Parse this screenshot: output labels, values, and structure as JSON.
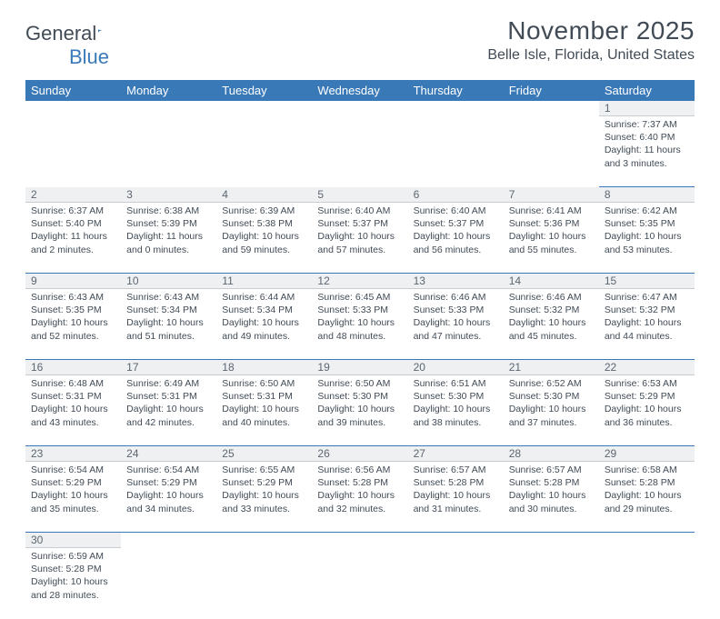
{
  "logo": {
    "text1": "General",
    "text2": "Blue"
  },
  "title": "November 2025",
  "location": "Belle Isle, Florida, United States",
  "colors": {
    "header_bg": "#3a79b7",
    "header_fg": "#ffffff",
    "daynum_bg": "#eef0f2",
    "daynum_fg": "#5d6670",
    "border": "#3a79b7",
    "text": "#414b56"
  },
  "weekdays": [
    "Sunday",
    "Monday",
    "Tuesday",
    "Wednesday",
    "Thursday",
    "Friday",
    "Saturday"
  ],
  "weeks": [
    {
      "days": [
        null,
        null,
        null,
        null,
        null,
        null,
        {
          "n": "1",
          "sunrise": "Sunrise: 7:37 AM",
          "sunset": "Sunset: 6:40 PM",
          "daylight": "Daylight: 11 hours and 3 minutes."
        }
      ]
    },
    {
      "days": [
        {
          "n": "2",
          "sunrise": "Sunrise: 6:37 AM",
          "sunset": "Sunset: 5:40 PM",
          "daylight": "Daylight: 11 hours and 2 minutes."
        },
        {
          "n": "3",
          "sunrise": "Sunrise: 6:38 AM",
          "sunset": "Sunset: 5:39 PM",
          "daylight": "Daylight: 11 hours and 0 minutes."
        },
        {
          "n": "4",
          "sunrise": "Sunrise: 6:39 AM",
          "sunset": "Sunset: 5:38 PM",
          "daylight": "Daylight: 10 hours and 59 minutes."
        },
        {
          "n": "5",
          "sunrise": "Sunrise: 6:40 AM",
          "sunset": "Sunset: 5:37 PM",
          "daylight": "Daylight: 10 hours and 57 minutes."
        },
        {
          "n": "6",
          "sunrise": "Sunrise: 6:40 AM",
          "sunset": "Sunset: 5:37 PM",
          "daylight": "Daylight: 10 hours and 56 minutes."
        },
        {
          "n": "7",
          "sunrise": "Sunrise: 6:41 AM",
          "sunset": "Sunset: 5:36 PM",
          "daylight": "Daylight: 10 hours and 55 minutes."
        },
        {
          "n": "8",
          "sunrise": "Sunrise: 6:42 AM",
          "sunset": "Sunset: 5:35 PM",
          "daylight": "Daylight: 10 hours and 53 minutes."
        }
      ]
    },
    {
      "days": [
        {
          "n": "9",
          "sunrise": "Sunrise: 6:43 AM",
          "sunset": "Sunset: 5:35 PM",
          "daylight": "Daylight: 10 hours and 52 minutes."
        },
        {
          "n": "10",
          "sunrise": "Sunrise: 6:43 AM",
          "sunset": "Sunset: 5:34 PM",
          "daylight": "Daylight: 10 hours and 51 minutes."
        },
        {
          "n": "11",
          "sunrise": "Sunrise: 6:44 AM",
          "sunset": "Sunset: 5:34 PM",
          "daylight": "Daylight: 10 hours and 49 minutes."
        },
        {
          "n": "12",
          "sunrise": "Sunrise: 6:45 AM",
          "sunset": "Sunset: 5:33 PM",
          "daylight": "Daylight: 10 hours and 48 minutes."
        },
        {
          "n": "13",
          "sunrise": "Sunrise: 6:46 AM",
          "sunset": "Sunset: 5:33 PM",
          "daylight": "Daylight: 10 hours and 47 minutes."
        },
        {
          "n": "14",
          "sunrise": "Sunrise: 6:46 AM",
          "sunset": "Sunset: 5:32 PM",
          "daylight": "Daylight: 10 hours and 45 minutes."
        },
        {
          "n": "15",
          "sunrise": "Sunrise: 6:47 AM",
          "sunset": "Sunset: 5:32 PM",
          "daylight": "Daylight: 10 hours and 44 minutes."
        }
      ]
    },
    {
      "days": [
        {
          "n": "16",
          "sunrise": "Sunrise: 6:48 AM",
          "sunset": "Sunset: 5:31 PM",
          "daylight": "Daylight: 10 hours and 43 minutes."
        },
        {
          "n": "17",
          "sunrise": "Sunrise: 6:49 AM",
          "sunset": "Sunset: 5:31 PM",
          "daylight": "Daylight: 10 hours and 42 minutes."
        },
        {
          "n": "18",
          "sunrise": "Sunrise: 6:50 AM",
          "sunset": "Sunset: 5:31 PM",
          "daylight": "Daylight: 10 hours and 40 minutes."
        },
        {
          "n": "19",
          "sunrise": "Sunrise: 6:50 AM",
          "sunset": "Sunset: 5:30 PM",
          "daylight": "Daylight: 10 hours and 39 minutes."
        },
        {
          "n": "20",
          "sunrise": "Sunrise: 6:51 AM",
          "sunset": "Sunset: 5:30 PM",
          "daylight": "Daylight: 10 hours and 38 minutes."
        },
        {
          "n": "21",
          "sunrise": "Sunrise: 6:52 AM",
          "sunset": "Sunset: 5:30 PM",
          "daylight": "Daylight: 10 hours and 37 minutes."
        },
        {
          "n": "22",
          "sunrise": "Sunrise: 6:53 AM",
          "sunset": "Sunset: 5:29 PM",
          "daylight": "Daylight: 10 hours and 36 minutes."
        }
      ]
    },
    {
      "days": [
        {
          "n": "23",
          "sunrise": "Sunrise: 6:54 AM",
          "sunset": "Sunset: 5:29 PM",
          "daylight": "Daylight: 10 hours and 35 minutes."
        },
        {
          "n": "24",
          "sunrise": "Sunrise: 6:54 AM",
          "sunset": "Sunset: 5:29 PM",
          "daylight": "Daylight: 10 hours and 34 minutes."
        },
        {
          "n": "25",
          "sunrise": "Sunrise: 6:55 AM",
          "sunset": "Sunset: 5:29 PM",
          "daylight": "Daylight: 10 hours and 33 minutes."
        },
        {
          "n": "26",
          "sunrise": "Sunrise: 6:56 AM",
          "sunset": "Sunset: 5:28 PM",
          "daylight": "Daylight: 10 hours and 32 minutes."
        },
        {
          "n": "27",
          "sunrise": "Sunrise: 6:57 AM",
          "sunset": "Sunset: 5:28 PM",
          "daylight": "Daylight: 10 hours and 31 minutes."
        },
        {
          "n": "28",
          "sunrise": "Sunrise: 6:57 AM",
          "sunset": "Sunset: 5:28 PM",
          "daylight": "Daylight: 10 hours and 30 minutes."
        },
        {
          "n": "29",
          "sunrise": "Sunrise: 6:58 AM",
          "sunset": "Sunset: 5:28 PM",
          "daylight": "Daylight: 10 hours and 29 minutes."
        }
      ]
    },
    {
      "days": [
        {
          "n": "30",
          "sunrise": "Sunrise: 6:59 AM",
          "sunset": "Sunset: 5:28 PM",
          "daylight": "Daylight: 10 hours and 28 minutes."
        },
        null,
        null,
        null,
        null,
        null,
        null
      ]
    }
  ]
}
